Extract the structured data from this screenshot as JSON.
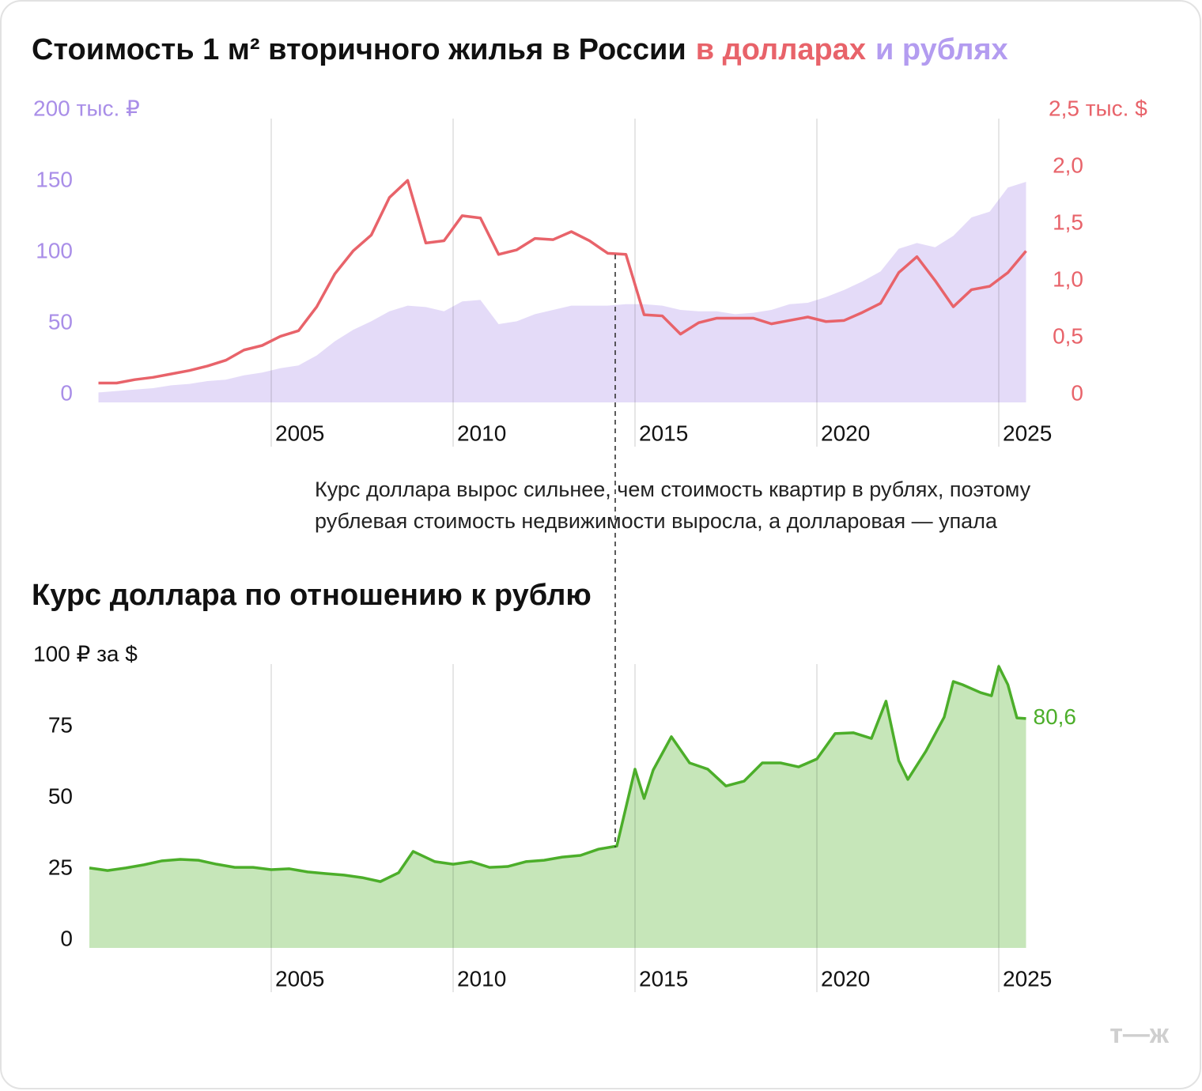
{
  "chart_data": [
    {
      "type": "line",
      "title": "Стоимость 1 м² вторичного жилья в России",
      "x": [
        2000.25,
        2000.75,
        2001.25,
        2001.75,
        2002.25,
        2002.75,
        2003.25,
        2003.75,
        2004.25,
        2004.75,
        2005.25,
        2005.75,
        2006.25,
        2006.75,
        2007.25,
        2007.75,
        2008.25,
        2008.75,
        2009.25,
        2009.75,
        2010.25,
        2010.75,
        2011.25,
        2011.75,
        2012.25,
        2012.75,
        2013.25,
        2013.75,
        2014.25,
        2014.75,
        2015.25,
        2015.75,
        2016.25,
        2016.75,
        2017.25,
        2017.75,
        2018.25,
        2018.75,
        2019.25,
        2019.75,
        2020.25,
        2020.75,
        2021.25,
        2021.75,
        2022.25,
        2022.75,
        2023.25,
        2023.75,
        2024.25,
        2024.75,
        2025.25,
        2025.75
      ],
      "series": [
        {
          "name": "в долларах",
          "type": "line",
          "axis": "y2",
          "color": "#e8636a",
          "values": [
            0.17,
            0.17,
            0.2,
            0.22,
            0.25,
            0.28,
            0.32,
            0.37,
            0.46,
            0.5,
            0.58,
            0.63,
            0.84,
            1.13,
            1.33,
            1.47,
            1.8,
            1.95,
            1.4,
            1.42,
            1.64,
            1.62,
            1.3,
            1.34,
            1.44,
            1.43,
            1.5,
            1.42,
            1.31,
            1.3,
            0.77,
            0.76,
            0.6,
            0.7,
            0.74,
            0.74,
            0.74,
            0.69,
            0.72,
            0.75,
            0.71,
            0.72,
            0.79,
            0.87,
            1.14,
            1.28,
            1.07,
            0.84,
            0.99,
            1.02,
            1.14,
            1.33
          ]
        },
        {
          "name": "и рублях",
          "type": "area",
          "axis": "y",
          "color": "#b39cf0",
          "fill_color": "#e4dbf8",
          "outline": false,
          "values": [
            7,
            8,
            9,
            10,
            12,
            13,
            15,
            16,
            19,
            21,
            24,
            26,
            33,
            43,
            51,
            57,
            64,
            68,
            67,
            64,
            71,
            72,
            55,
            57,
            62,
            65,
            68,
            68,
            68,
            69,
            69,
            68,
            65,
            64,
            64,
            62,
            63,
            65,
            69,
            70,
            74,
            79,
            85,
            92,
            108,
            112,
            109,
            117,
            130,
            134,
            151,
            155
          ]
        }
      ],
      "xlim": [
        2000.25,
        2025.75
      ],
      "xticks": [
        2005,
        2010,
        2015,
        2020,
        2025
      ],
      "ylim": [
        0,
        200
      ],
      "yticks": [
        0,
        50,
        100,
        150,
        {
          "value": 200,
          "label": "200 тыс. ₽"
        }
      ],
      "ytick_color": "#a98ee8",
      "y2lim": [
        0,
        2.5
      ],
      "y2ticks": [
        0,
        {
          "value": 0.5,
          "label": "0,5"
        },
        {
          "value": 1.0,
          "label": "1,0"
        },
        {
          "value": 1.5,
          "label": "1,5"
        },
        {
          "value": 2.0,
          "label": "2,0"
        },
        {
          "value": 2.5,
          "label": "2,5 тыс. $"
        }
      ],
      "y2tick_color": "#e8636a"
    },
    {
      "type": "area",
      "title": "Курс доллара по отношению к рублю",
      "x": [
        2000,
        2000.5,
        2001,
        2001.5,
        2002,
        2002.5,
        2003,
        2003.5,
        2004,
        2004.5,
        2005,
        2005.5,
        2006,
        2006.5,
        2007,
        2007.5,
        2008,
        2008.5,
        2008.9,
        2009.5,
        2010,
        2010.5,
        2011,
        2011.5,
        2012,
        2012.5,
        2013,
        2013.5,
        2014,
        2014.5,
        2015,
        2015.25,
        2015.5,
        2016,
        2016.5,
        2017,
        2017.5,
        2018,
        2018.5,
        2019,
        2019.5,
        2020,
        2020.5,
        2021,
        2021.5,
        2021.9,
        2022.25,
        2022.5,
        2023,
        2023.5,
        2023.75,
        2024,
        2024.5,
        2024.8,
        2025,
        2025.25,
        2025.5,
        2025.75
      ],
      "series": [
        {
          "type": "area",
          "axis": "y",
          "color": "#4cae2a",
          "fill_color": "#c6e6b9",
          "outline": true,
          "values": [
            28.1,
            27.2,
            28.1,
            29.2,
            30.6,
            31.1,
            30.8,
            29.4,
            28.3,
            28.3,
            27.5,
            27.8,
            26.7,
            26.1,
            25.6,
            24.7,
            23.3,
            26.4,
            33.9,
            30.3,
            29.4,
            30.3,
            28.3,
            28.6,
            30.3,
            30.8,
            31.9,
            32.5,
            34.7,
            35.8,
            62.8,
            52.5,
            62.5,
            74.2,
            65.0,
            62.8,
            56.9,
            58.6,
            65.0,
            65.0,
            63.6,
            66.4,
            75.3,
            75.6,
            73.6,
            86.7,
            65.8,
            59.2,
            69.2,
            81.1,
            93.6,
            92.5,
            89.7,
            88.6,
            98.9,
            92.5,
            80.8,
            80.6
          ],
          "value_labels": [
            null,
            null,
            null,
            null,
            null,
            null,
            null,
            null,
            null,
            null,
            null,
            null,
            null,
            null,
            null,
            null,
            null,
            null,
            null,
            null,
            null,
            null,
            null,
            null,
            null,
            null,
            null,
            null,
            null,
            null,
            null,
            null,
            null,
            null,
            null,
            null,
            null,
            null,
            null,
            null,
            null,
            null,
            null,
            null,
            null,
            null,
            null,
            null,
            null,
            null,
            null,
            null,
            null,
            null,
            null,
            null,
            null,
            "80,6"
          ]
        }
      ],
      "xlim": [
        2000,
        2025.75
      ],
      "xticks": [
        2005,
        2010,
        2015,
        2020,
        2025
      ],
      "ylim": [
        0,
        100
      ],
      "yticks": [
        0,
        25,
        50,
        75,
        {
          "value": 100,
          "label": "100 ₽ за $"
        }
      ],
      "ytick_color": "#111111"
    }
  ],
  "annotation": [
    "Курс доллара вырос сильнее, чем стоимость квартир в рублях, поэтому",
    "рублевая стоимость недвижимости выросла, а долларовая — упала"
  ],
  "watermark": "т—ж"
}
